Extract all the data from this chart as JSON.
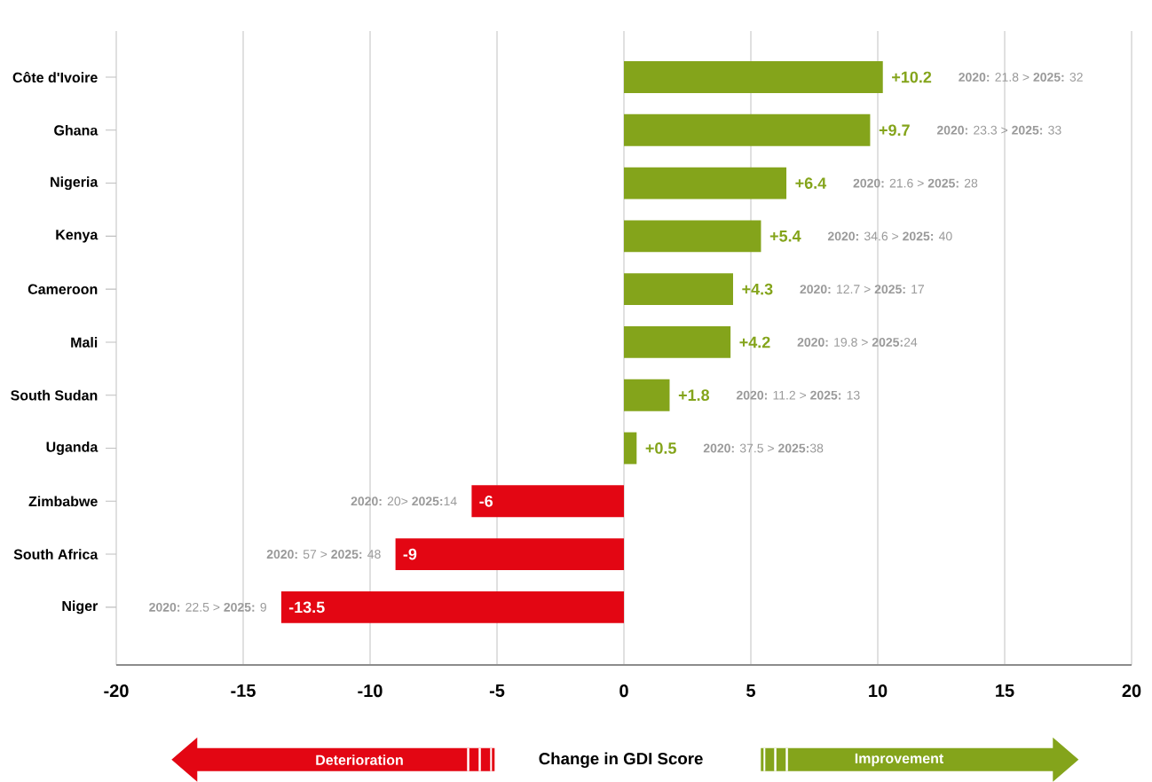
{
  "chart_data": {
    "type": "bar",
    "orientation": "horizontal",
    "xlabel": "Change in GDI Score",
    "categories": [
      "Côte d'Ivoire",
      "Ghana",
      "Nigeria",
      "Kenya",
      "Cameroon",
      "Mali",
      "South Sudan",
      "Uganda",
      "Zimbabwe",
      "South Africa",
      "Niger"
    ],
    "values": [
      10.2,
      9.7,
      6.4,
      5.4,
      4.3,
      4.2,
      1.8,
      0.5,
      -6,
      -9,
      -13.5
    ],
    "colors": [
      "#84a41b",
      "#84a41b",
      "#84a41b",
      "#84a41b",
      "#84a41b",
      "#84a41b",
      "#84a41b",
      "#84a41b",
      "#e30613",
      "#e30613",
      "#e30613"
    ],
    "value_labels": [
      "+10.2",
      "+9.7",
      "+6.4",
      "+5.4",
      "+4.3",
      "+4.2",
      "+1.8",
      "+0.5",
      "-6",
      "-9",
      "-13.5"
    ],
    "xlim": [
      -20,
      20
    ],
    "xticks": [
      -20,
      -15,
      -10,
      -5,
      0,
      5,
      10,
      15,
      20
    ],
    "grid": "x",
    "annotations": [
      "**2020:** 21.8 > **2025:** 32",
      "**2020:** 23.3 > **2025:** 33",
      "**2020:** 21.6 > **2025:** 28",
      "**2020:** 34.6 > **2025:** 40",
      "**2020:** 12.7 > **2025:** 17",
      "**2020:** 19.8 > **2025:**24",
      "**2020:** 11.2 > **2025:** 13",
      "**2020:** 37.5 > **2025:**38",
      "**2020:** 20> **2025:**14",
      "**2020:** 57 > **2025:** 48",
      "**2020:** 22.5 > **2025:** 9",
      "Deterioration",
      "Improvement"
    ]
  }
}
